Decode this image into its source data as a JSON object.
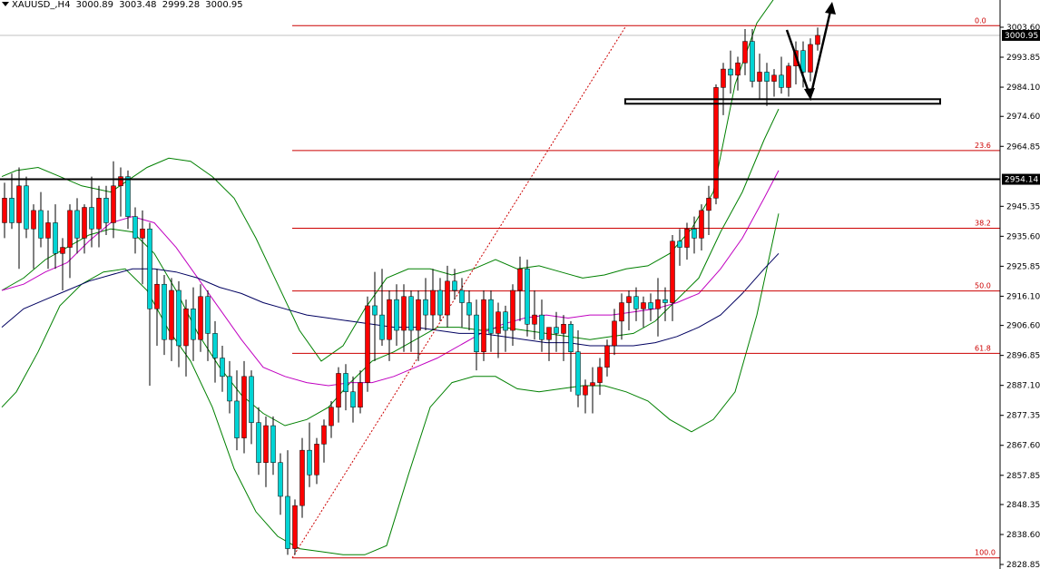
{
  "header": {
    "symbol": "XAUUSD_,H4",
    "open": "3000.89",
    "high": "3003.48",
    "low": "2999.28",
    "close": "3000.95"
  },
  "colors": {
    "bull": "#ff0000",
    "bear": "#00d4d4",
    "candle_outline": "#000000",
    "bollinger": "#008000",
    "ma_fast": "#c000c0",
    "ma_slow": "#000060",
    "fib": "#cc0000",
    "level": "#000000",
    "price_tag_bg": "#000000",
    "price_tag_text": "#ffffff"
  },
  "chart_data": {
    "type": "candlestick",
    "ylim": [
      2828.85,
      3011.0
    ],
    "price_axis": {
      "ticks": [
        "3003.60",
        "2993.85",
        "2984.10",
        "2974.60",
        "2964.85",
        "2945.35",
        "2935.60",
        "2925.85",
        "2916.10",
        "2906.60",
        "2896.85",
        "2887.10",
        "2877.35",
        "2867.60",
        "2857.85",
        "2848.35",
        "2838.60",
        "2828.85"
      ],
      "tick_values": [
        3003.6,
        2993.85,
        2984.1,
        2974.6,
        2964.85,
        2945.35,
        2935.6,
        2925.85,
        2916.1,
        2906.6,
        2896.85,
        2887.1,
        2877.35,
        2867.6,
        2857.85,
        2848.35,
        2838.6,
        2828.85
      ],
      "current_price": "3000.95",
      "current_value": 3000.95,
      "level_price": "2954.14",
      "level_value": 2954.14
    },
    "candles": [
      [
        2940,
        2953,
        2935,
        2948
      ],
      [
        2948,
        2956,
        2938,
        2940
      ],
      [
        2940,
        2958,
        2925,
        2952
      ],
      [
        2952,
        2955,
        2935,
        2938
      ],
      [
        2938,
        2946,
        2925,
        2944
      ],
      [
        2944,
        2950,
        2932,
        2935
      ],
      [
        2935,
        2944,
        2925,
        2940
      ],
      [
        2940,
        2946,
        2925,
        2930
      ],
      [
        2930,
        2935,
        2918,
        2932
      ],
      [
        2932,
        2946,
        2922,
        2944
      ],
      [
        2944,
        2948,
        2930,
        2935
      ],
      [
        2935,
        2946,
        2930,
        2945
      ],
      [
        2945,
        2955,
        2932,
        2938
      ],
      [
        2938,
        2952,
        2932,
        2948
      ],
      [
        2948,
        2952,
        2936,
        2940
      ],
      [
        2940,
        2960,
        2935,
        2952
      ],
      [
        2952,
        2958,
        2942,
        2955
      ],
      [
        2955,
        2957,
        2938,
        2942
      ],
      [
        2942,
        2945,
        2930,
        2935
      ],
      [
        2935,
        2944,
        2920,
        2938
      ],
      [
        2938,
        2940,
        2887,
        2912
      ],
      [
        2912,
        2925,
        2900,
        2920
      ],
      [
        2920,
        2923,
        2897,
        2902
      ],
      [
        2902,
        2922,
        2895,
        2918
      ],
      [
        2918,
        2921,
        2893,
        2900
      ],
      [
        2900,
        2915,
        2890,
        2912
      ],
      [
        2912,
        2919,
        2895,
        2902
      ],
      [
        2902,
        2920,
        2898,
        2916
      ],
      [
        2916,
        2918,
        2895,
        2904
      ],
      [
        2904,
        2908,
        2888,
        2896
      ],
      [
        2896,
        2900,
        2885,
        2890
      ],
      [
        2890,
        2895,
        2878,
        2882
      ],
      [
        2882,
        2892,
        2866,
        2870
      ],
      [
        2870,
        2895,
        2865,
        2890
      ],
      [
        2890,
        2892,
        2868,
        2875
      ],
      [
        2875,
        2880,
        2858,
        2862
      ],
      [
        2862,
        2877,
        2854,
        2874
      ],
      [
        2874,
        2877,
        2858,
        2862
      ],
      [
        2862,
        2865,
        2845,
        2851
      ],
      [
        2851,
        2866,
        2832,
        2834
      ],
      [
        2834,
        2850,
        2832,
        2848
      ],
      [
        2848,
        2870,
        2844,
        2866
      ],
      [
        2866,
        2875,
        2854,
        2858
      ],
      [
        2858,
        2870,
        2855,
        2868
      ],
      [
        2868,
        2876,
        2862,
        2874
      ],
      [
        2874,
        2882,
        2870,
        2880
      ],
      [
        2880,
        2893,
        2875,
        2891
      ],
      [
        2891,
        2894,
        2879,
        2885
      ],
      [
        2885,
        2890,
        2875,
        2880
      ],
      [
        2880,
        2892,
        2878,
        2888
      ],
      [
        2888,
        2916,
        2885,
        2913
      ],
      [
        2913,
        2924,
        2895,
        2910
      ],
      [
        2910,
        2925,
        2900,
        2902
      ],
      [
        2902,
        2918,
        2895,
        2915
      ],
      [
        2915,
        2920,
        2900,
        2905
      ],
      [
        2905,
        2920,
        2898,
        2916
      ],
      [
        2916,
        2918,
        2898,
        2905
      ],
      [
        2905,
        2918,
        2895,
        2915
      ],
      [
        2915,
        2922,
        2905,
        2910
      ],
      [
        2910,
        2925,
        2905,
        2918
      ],
      [
        2918,
        2922,
        2908,
        2910
      ],
      [
        2910,
        2926,
        2906,
        2921
      ],
      [
        2921,
        2925,
        2915,
        2918
      ],
      [
        2918,
        2922,
        2906,
        2914
      ],
      [
        2914,
        2918,
        2905,
        2910
      ],
      [
        2910,
        2915,
        2892,
        2898
      ],
      [
        2898,
        2918,
        2895,
        2915
      ],
      [
        2915,
        2918,
        2898,
        2904
      ],
      [
        2904,
        2914,
        2896,
        2911
      ],
      [
        2911,
        2913,
        2898,
        2905
      ],
      [
        2905,
        2920,
        2900,
        2918
      ],
      [
        2918,
        2929,
        2908,
        2925
      ],
      [
        2925,
        2928,
        2903,
        2907
      ],
      [
        2907,
        2918,
        2902,
        2910
      ],
      [
        2910,
        2915,
        2898,
        2902
      ],
      [
        2902,
        2906,
        2895,
        2906
      ],
      [
        2906,
        2911,
        2898,
        2904
      ],
      [
        2904,
        2910,
        2895,
        2907
      ],
      [
        2907,
        2908,
        2885,
        2898
      ],
      [
        2898,
        2905,
        2880,
        2884
      ],
      [
        2884,
        2889,
        2878,
        2887
      ],
      [
        2887,
        2893,
        2878,
        2888
      ],
      [
        2888,
        2896,
        2884,
        2893
      ],
      [
        2893,
        2902,
        2890,
        2900
      ],
      [
        2900,
        2912,
        2897,
        2908
      ],
      [
        2908,
        2917,
        2902,
        2914
      ],
      [
        2914,
        2918,
        2905,
        2916
      ],
      [
        2916,
        2919,
        2908,
        2912
      ],
      [
        2912,
        2916,
        2906,
        2914
      ],
      [
        2914,
        2917,
        2908,
        2912
      ],
      [
        2912,
        2922,
        2903,
        2915
      ],
      [
        2915,
        2919,
        2908,
        2914
      ],
      [
        2914,
        2936,
        2908,
        2934
      ],
      [
        2934,
        2938,
        2926,
        2932
      ],
      [
        2932,
        2940,
        2928,
        2938
      ],
      [
        2938,
        2942,
        2930,
        2935
      ],
      [
        2935,
        2946,
        2931,
        2944
      ],
      [
        2944,
        2952,
        2936,
        2948
      ],
      [
        2948,
        2985,
        2946,
        2984
      ],
      [
        2984,
        2992,
        2975,
        2990
      ],
      [
        2990,
        2996,
        2982,
        2988
      ],
      [
        2988,
        2994,
        2983,
        2992
      ],
      [
        2992,
        3003,
        2988,
        2999
      ],
      [
        2999,
        3003,
        2984,
        2986
      ],
      [
        2986,
        2995,
        2980,
        2989
      ],
      [
        2989,
        2992,
        2978,
        2986
      ],
      [
        2986,
        2990,
        2981,
        2988
      ],
      [
        2988,
        2994,
        2982,
        2984
      ],
      [
        2984,
        2992,
        2981,
        2991
      ],
      [
        2991,
        2999,
        2985,
        2996
      ],
      [
        2996,
        2999,
        2984,
        2989
      ],
      [
        2989,
        3000,
        2986,
        2998
      ],
      [
        2998,
        3003.48,
        2996,
        3000.95
      ]
    ],
    "bollinger_upper": [
      [
        0,
        2955
      ],
      [
        2,
        2957
      ],
      [
        5,
        2958
      ],
      [
        8,
        2955
      ],
      [
        11,
        2952
      ],
      [
        15,
        2950
      ],
      [
        20,
        2958
      ],
      [
        23,
        2961
      ],
      [
        26,
        2960
      ],
      [
        29,
        2955
      ],
      [
        32,
        2948
      ],
      [
        35,
        2935
      ],
      [
        38,
        2920
      ],
      [
        41,
        2905
      ],
      [
        44,
        2895
      ],
      [
        47,
        2900
      ],
      [
        50,
        2912
      ],
      [
        53,
        2922
      ],
      [
        56,
        2925
      ],
      [
        59,
        2925
      ],
      [
        62,
        2923
      ],
      [
        65,
        2925
      ],
      [
        68,
        2928
      ],
      [
        71,
        2925
      ],
      [
        74,
        2926
      ],
      [
        77,
        2924
      ],
      [
        80,
        2922
      ],
      [
        83,
        2923
      ],
      [
        86,
        2925
      ],
      [
        89,
        2926
      ],
      [
        92,
        2930
      ],
      [
        95,
        2938
      ],
      [
        98,
        2950
      ],
      [
        101,
        2985
      ],
      [
        104,
        3005
      ],
      [
        107,
        3015
      ]
    ],
    "bollinger_lower": [
      [
        0,
        2880
      ],
      [
        2,
        2885
      ],
      [
        5,
        2898
      ],
      [
        8,
        2913
      ],
      [
        11,
        2920
      ],
      [
        14,
        2924
      ],
      [
        17,
        2925
      ],
      [
        20,
        2918
      ],
      [
        23,
        2905
      ],
      [
        26,
        2895
      ],
      [
        29,
        2880
      ],
      [
        32,
        2860
      ],
      [
        35,
        2846
      ],
      [
        38,
        2838
      ],
      [
        41,
        2834
      ],
      [
        44,
        2833
      ],
      [
        47,
        2832
      ],
      [
        50,
        2832
      ],
      [
        53,
        2835
      ],
      [
        56,
        2858
      ],
      [
        59,
        2880
      ],
      [
        62,
        2888
      ],
      [
        65,
        2890
      ],
      [
        68,
        2890
      ],
      [
        71,
        2886
      ],
      [
        74,
        2885
      ],
      [
        77,
        2886
      ],
      [
        80,
        2887
      ],
      [
        83,
        2887
      ],
      [
        86,
        2885
      ],
      [
        89,
        2882
      ],
      [
        92,
        2876
      ],
      [
        95,
        2872
      ],
      [
        98,
        2876
      ],
      [
        101,
        2885
      ],
      [
        104,
        2910
      ],
      [
        107,
        2943
      ]
    ],
    "bollinger_middle": [
      [
        0,
        2918
      ],
      [
        3,
        2922
      ],
      [
        6,
        2928
      ],
      [
        9,
        2932
      ],
      [
        12,
        2936
      ],
      [
        15,
        2938
      ],
      [
        18,
        2937
      ],
      [
        21,
        2930
      ],
      [
        24,
        2918
      ],
      [
        27,
        2904
      ],
      [
        30,
        2893
      ],
      [
        33,
        2884
      ],
      [
        36,
        2878
      ],
      [
        39,
        2874
      ],
      [
        42,
        2876
      ],
      [
        45,
        2880
      ],
      [
        48,
        2888
      ],
      [
        51,
        2895
      ],
      [
        54,
        2898
      ],
      [
        57,
        2902
      ],
      [
        60,
        2906
      ],
      [
        63,
        2906
      ],
      [
        66,
        2905
      ],
      [
        69,
        2906
      ],
      [
        72,
        2905
      ],
      [
        75,
        2904
      ],
      [
        78,
        2903
      ],
      [
        81,
        2902
      ],
      [
        84,
        2903
      ],
      [
        87,
        2904
      ],
      [
        90,
        2908
      ],
      [
        93,
        2915
      ],
      [
        96,
        2922
      ],
      [
        99,
        2937
      ],
      [
        102,
        2950
      ],
      [
        105,
        2967
      ],
      [
        107,
        2977
      ]
    ],
    "ma_fast": [
      [
        0,
        2918
      ],
      [
        3,
        2920
      ],
      [
        6,
        2924
      ],
      [
        9,
        2927
      ],
      [
        12,
        2934
      ],
      [
        15,
        2940
      ],
      [
        18,
        2942
      ],
      [
        21,
        2940
      ],
      [
        24,
        2932
      ],
      [
        27,
        2922
      ],
      [
        30,
        2912
      ],
      [
        33,
        2902
      ],
      [
        36,
        2893
      ],
      [
        39,
        2890
      ],
      [
        42,
        2888
      ],
      [
        45,
        2887
      ],
      [
        48,
        2888
      ],
      [
        51,
        2888
      ],
      [
        54,
        2890
      ],
      [
        57,
        2893
      ],
      [
        60,
        2896
      ],
      [
        63,
        2900
      ],
      [
        66,
        2904
      ],
      [
        69,
        2907
      ],
      [
        72,
        2909
      ],
      [
        75,
        2910
      ],
      [
        78,
        2909
      ],
      [
        81,
        2910
      ],
      [
        84,
        2910
      ],
      [
        87,
        2911
      ],
      [
        90,
        2912
      ],
      [
        93,
        2914
      ],
      [
        96,
        2917
      ],
      [
        99,
        2925
      ],
      [
        102,
        2935
      ],
      [
        105,
        2948
      ],
      [
        107,
        2957
      ]
    ],
    "ma_slow": [
      [
        0,
        2906
      ],
      [
        3,
        2912
      ],
      [
        6,
        2915
      ],
      [
        9,
        2918
      ],
      [
        12,
        2921
      ],
      [
        15,
        2923
      ],
      [
        18,
        2925
      ],
      [
        21,
        2925
      ],
      [
        24,
        2924
      ],
      [
        27,
        2922
      ],
      [
        30,
        2919
      ],
      [
        33,
        2917
      ],
      [
        36,
        2914
      ],
      [
        39,
        2912
      ],
      [
        42,
        2910
      ],
      [
        45,
        2909
      ],
      [
        48,
        2908
      ],
      [
        51,
        2907
      ],
      [
        54,
        2906
      ],
      [
        57,
        2906
      ],
      [
        60,
        2905
      ],
      [
        63,
        2904
      ],
      [
        66,
        2904
      ],
      [
        69,
        2903
      ],
      [
        72,
        2902
      ],
      [
        75,
        2901
      ],
      [
        78,
        2901
      ],
      [
        81,
        2900
      ],
      [
        84,
        2900
      ],
      [
        87,
        2900
      ],
      [
        90,
        2901
      ],
      [
        93,
        2903
      ],
      [
        96,
        2906
      ],
      [
        99,
        2910
      ],
      [
        102,
        2917
      ],
      [
        105,
        2925
      ],
      [
        107,
        2930
      ]
    ],
    "fibonacci": {
      "labels": [
        "0.0",
        "23.6",
        "38.2",
        "50.0",
        "61.8",
        "100.0"
      ],
      "values": [
        3004.1,
        2963.5,
        2938.2,
        2917.8,
        2897.5,
        2831.0
      ]
    },
    "support_zone_value": 2979.6,
    "resistance_value": 2954.14
  }
}
